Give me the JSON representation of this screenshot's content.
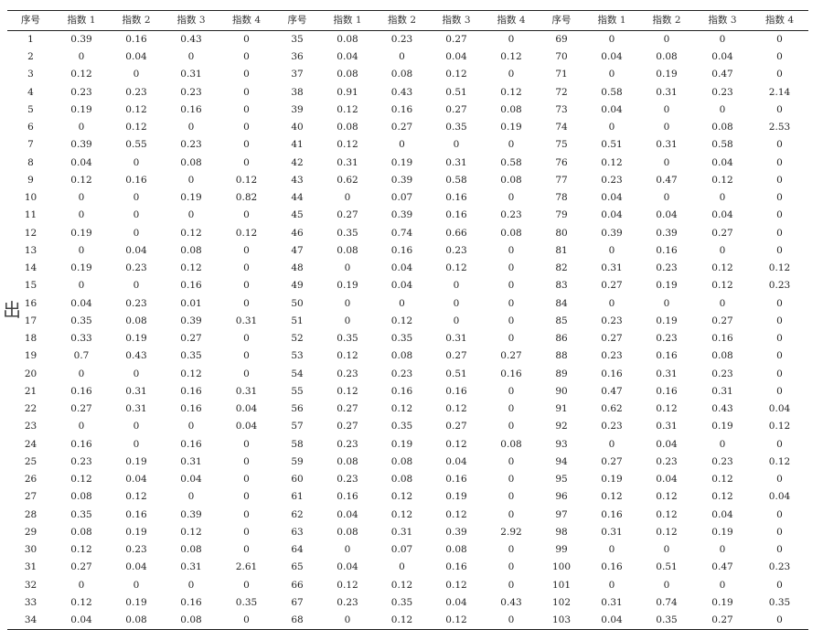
{
  "headers": [
    "序号",
    "指数 1",
    "指数 2",
    "指数 3",
    "指数 4",
    "序号",
    "指数 1",
    "指数 2",
    "指数 3",
    "指数 4",
    "序号",
    "指数 1",
    "指数 2",
    "指数 3",
    "指数 4"
  ],
  "rows": [
    [
      "1",
      "0.39",
      "0.16",
      "0.43",
      "0",
      "35",
      "0.08",
      "0.23",
      "0.27",
      "0",
      "69",
      "0",
      "0",
      "0",
      "0"
    ],
    [
      "2",
      "0",
      "0.04",
      "0",
      "0",
      "36",
      "0.04",
      "0",
      "0.04",
      "0.12",
      "70",
      "0.04",
      "0.08",
      "0.04",
      "0"
    ],
    [
      "3",
      "0.12",
      "0",
      "0.31",
      "0",
      "37",
      "0.08",
      "0.08",
      "0.12",
      "0",
      "71",
      "0",
      "0.19",
      "0.47",
      "0"
    ],
    [
      "4",
      "0.23",
      "0.23",
      "0.23",
      "0",
      "38",
      "0.91",
      "0.43",
      "0.51",
      "0.12",
      "72",
      "0.58",
      "0.31",
      "0.23",
      "2.14"
    ],
    [
      "5",
      "0.19",
      "0.12",
      "0.16",
      "0",
      "39",
      "0.12",
      "0.16",
      "0.27",
      "0.08",
      "73",
      "0.04",
      "0",
      "0",
      "0"
    ],
    [
      "6",
      "0",
      "0.12",
      "0",
      "0",
      "40",
      "0.08",
      "0.27",
      "0.35",
      "0.19",
      "74",
      "0",
      "0",
      "0.08",
      "2.53"
    ],
    [
      "7",
      "0.39",
      "0.55",
      "0.23",
      "0",
      "41",
      "0.12",
      "0",
      "0",
      "0",
      "75",
      "0.51",
      "0.31",
      "0.58",
      "0"
    ],
    [
      "8",
      "0.04",
      "0",
      "0.08",
      "0",
      "42",
      "0.31",
      "0.19",
      "0.31",
      "0.58",
      "76",
      "0.12",
      "0",
      "0.04",
      "0"
    ],
    [
      "9",
      "0.12",
      "0.16",
      "0",
      "0.12",
      "43",
      "0.62",
      "0.39",
      "0.58",
      "0.08",
      "77",
      "0.23",
      "0.47",
      "0.12",
      "0"
    ],
    [
      "10",
      "0",
      "0",
      "0.19",
      "0.82",
      "44",
      "0",
      "0.07",
      "0.16",
      "0",
      "78",
      "0.04",
      "0",
      "0",
      "0"
    ],
    [
      "11",
      "0",
      "0",
      "0",
      "0",
      "45",
      "0.27",
      "0.39",
      "0.16",
      "0.23",
      "79",
      "0.04",
      "0.04",
      "0.04",
      "0"
    ],
    [
      "12",
      "0.19",
      "0",
      "0.12",
      "0.12",
      "46",
      "0.35",
      "0.74",
      "0.66",
      "0.08",
      "80",
      "0.39",
      "0.39",
      "0.27",
      "0"
    ],
    [
      "13",
      "0",
      "0.04",
      "0.08",
      "0",
      "47",
      "0.08",
      "0.16",
      "0.23",
      "0",
      "81",
      "0",
      "0.16",
      "0",
      "0"
    ],
    [
      "14",
      "0.19",
      "0.23",
      "0.12",
      "0",
      "48",
      "0",
      "0.04",
      "0.12",
      "0",
      "82",
      "0.31",
      "0.23",
      "0.12",
      "0.12"
    ],
    [
      "15",
      "0",
      "0",
      "0.16",
      "0",
      "49",
      "0.19",
      "0.04",
      "0",
      "0",
      "83",
      "0.27",
      "0.19",
      "0.12",
      "0.23"
    ],
    [
      "16",
      "0.04",
      "0.23",
      "0.01",
      "0",
      "50",
      "0",
      "0",
      "0",
      "0",
      "84",
      "0",
      "0",
      "0",
      "0"
    ],
    [
      "17",
      "0.35",
      "0.08",
      "0.39",
      "0.31",
      "51",
      "0",
      "0.12",
      "0",
      "0",
      "85",
      "0.23",
      "0.19",
      "0.27",
      "0"
    ],
    [
      "18",
      "0.33",
      "0.19",
      "0.27",
      "0",
      "52",
      "0.35",
      "0.35",
      "0.31",
      "0",
      "86",
      "0.27",
      "0.23",
      "0.16",
      "0"
    ],
    [
      "19",
      "0.7",
      "0.43",
      "0.35",
      "0",
      "53",
      "0.12",
      "0.08",
      "0.27",
      "0.27",
      "88",
      "0.23",
      "0.16",
      "0.08",
      "0"
    ],
    [
      "20",
      "0",
      "0",
      "0.12",
      "0",
      "54",
      "0.23",
      "0.23",
      "0.51",
      "0.16",
      "89",
      "0.16",
      "0.31",
      "0.23",
      "0"
    ],
    [
      "21",
      "0.16",
      "0.31",
      "0.16",
      "0.31",
      "55",
      "0.12",
      "0.16",
      "0.16",
      "0",
      "90",
      "0.47",
      "0.16",
      "0.31",
      "0"
    ],
    [
      "22",
      "0.27",
      "0.31",
      "0.16",
      "0.04",
      "56",
      "0.27",
      "0.12",
      "0.12",
      "0",
      "91",
      "0.62",
      "0.12",
      "0.43",
      "0.04"
    ],
    [
      "23",
      "0",
      "0",
      "0",
      "0.04",
      "57",
      "0.27",
      "0.35",
      "0.27",
      "0",
      "92",
      "0.23",
      "0.31",
      "0.19",
      "0.12"
    ],
    [
      "24",
      "0.16",
      "0",
      "0.16",
      "0",
      "58",
      "0.23",
      "0.19",
      "0.12",
      "0.08",
      "93",
      "0",
      "0.04",
      "0",
      "0"
    ],
    [
      "25",
      "0.23",
      "0.19",
      "0.31",
      "0",
      "59",
      "0.08",
      "0.08",
      "0.04",
      "0",
      "94",
      "0.27",
      "0.23",
      "0.23",
      "0.12"
    ],
    [
      "26",
      "0.12",
      "0.04",
      "0.04",
      "0",
      "60",
      "0.23",
      "0.08",
      "0.16",
      "0",
      "95",
      "0.19",
      "0.04",
      "0.12",
      "0"
    ],
    [
      "27",
      "0.08",
      "0.12",
      "0",
      "0",
      "61",
      "0.16",
      "0.12",
      "0.19",
      "0",
      "96",
      "0.12",
      "0.12",
      "0.12",
      "0.04"
    ],
    [
      "28",
      "0.35",
      "0.16",
      "0.39",
      "0",
      "62",
      "0.04",
      "0.12",
      "0.12",
      "0",
      "97",
      "0.16",
      "0.12",
      "0.04",
      "0"
    ],
    [
      "29",
      "0.08",
      "0.19",
      "0.12",
      "0",
      "63",
      "0.08",
      "0.31",
      "0.39",
      "2.92",
      "98",
      "0.31",
      "0.12",
      "0.19",
      "0"
    ],
    [
      "30",
      "0.12",
      "0.23",
      "0.08",
      "0",
      "64",
      "0",
      "0.07",
      "0.08",
      "0",
      "99",
      "0",
      "0",
      "0",
      "0"
    ],
    [
      "31",
      "0.27",
      "0.04",
      "0.31",
      "2.61",
      "65",
      "0.04",
      "0",
      "0.16",
      "0",
      "100",
      "0.16",
      "0.51",
      "0.47",
      "0.23"
    ],
    [
      "32",
      "0",
      "0",
      "0",
      "0",
      "66",
      "0.12",
      "0.12",
      "0.12",
      "0",
      "101",
      "0",
      "0",
      "0",
      "0"
    ],
    [
      "33",
      "0.12",
      "0.19",
      "0.16",
      "0.35",
      "67",
      "0.23",
      "0.35",
      "0.04",
      "0.43",
      "102",
      "0.31",
      "0.74",
      "0.19",
      "0.35"
    ],
    [
      "34",
      "0.04",
      "0.08",
      "0.08",
      "0",
      "68",
      "0",
      "0.12",
      "0.12",
      "0",
      "103",
      "0.04",
      "0.35",
      "0.27",
      "0"
    ]
  ],
  "side_mark": "出"
}
